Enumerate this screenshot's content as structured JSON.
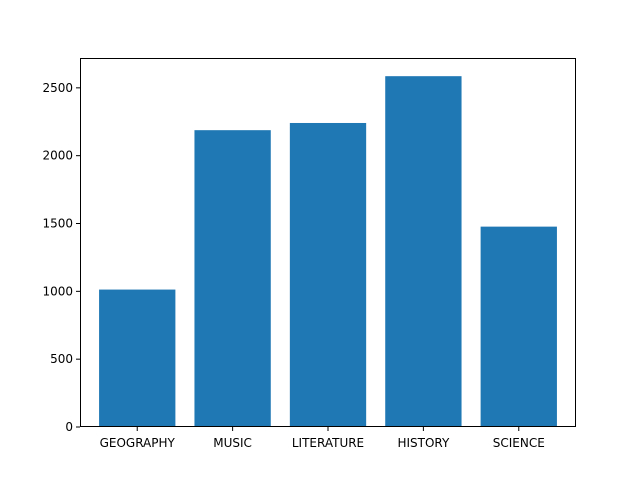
{
  "chart_data": {
    "type": "bar",
    "title": "",
    "xlabel": "",
    "ylabel": "",
    "categories": [
      "GEOGRAPHY",
      "MUSIC",
      "LITERATURE",
      "HISTORY",
      "SCIENCE"
    ],
    "values": [
      1013,
      2188,
      2241,
      2586,
      1477
    ],
    "ylim": [
      0,
      2720
    ],
    "yticks": [
      0,
      500,
      1000,
      1500,
      2000,
      2500
    ],
    "bar_color": "#1f77b4",
    "grid": false,
    "legend": "none"
  }
}
